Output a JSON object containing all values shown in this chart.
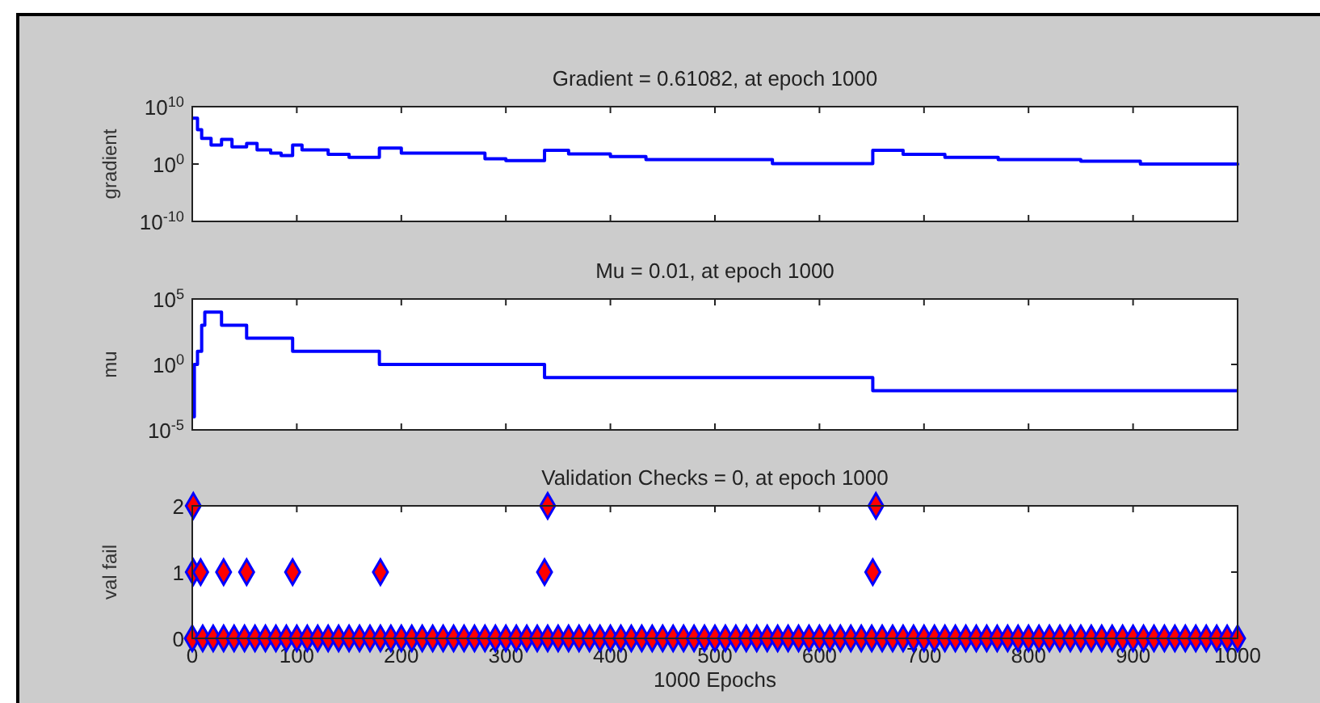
{
  "chart_data": [
    {
      "type": "step",
      "title": "Gradient = 0.61082, at epoch 1000",
      "ylabel": "gradient",
      "log": "y",
      "tick_labels": "y",
      "xlim": [
        0,
        1000
      ],
      "xticks": [
        {
          "value": 0,
          "label": null
        },
        {
          "value": 100,
          "label": null
        },
        {
          "value": 200,
          "label": null
        },
        {
          "value": 300,
          "label": null
        },
        {
          "value": 400,
          "label": null
        },
        {
          "value": 500,
          "label": null
        },
        {
          "value": 600,
          "label": null
        },
        {
          "value": 700,
          "label": null
        },
        {
          "value": 800,
          "label": null
        },
        {
          "value": 900,
          "label": null
        },
        {
          "value": 1000,
          "label": null
        }
      ],
      "ylim": [
        1e-10,
        10000000000.0
      ],
      "yticks": [
        {
          "value": 1e-10,
          "label": "10$^{-10}$"
        },
        {
          "value": 1,
          "label": "10$^{0}$"
        },
        {
          "value": 10000000000.0,
          "label": "10$^{10}$"
        }
      ],
      "series": [
        {
          "color": "#0000ff",
          "x": [
            0,
            5,
            9,
            18,
            28,
            38,
            52,
            62,
            75,
            85,
            96,
            105,
            130,
            150,
            179,
            200,
            280,
            300,
            337,
            360,
            400,
            434,
            555,
            651,
            680,
            720,
            771,
            850,
            907,
            1000
          ],
          "values": [
            100000000.0,
            1000000.0,
            30000.0,
            2000.0,
            20000.0,
            1000.0,
            4000.0,
            300,
            80,
            30,
            2000.0,
            300,
            50,
            15,
            600,
            80,
            8,
            4,
            250,
            60,
            20,
            6,
            1.2,
            250,
            50,
            15,
            6,
            3,
            1,
            0.61082
          ]
        }
      ]
    },
    {
      "type": "step",
      "title": "Mu = 0.01, at epoch 1000",
      "ylabel": "mu",
      "log": "y",
      "tick_labels": "y",
      "xlim": [
        0,
        1000
      ],
      "xticks": [
        {
          "value": 0,
          "label": null
        },
        {
          "value": 100,
          "label": null
        },
        {
          "value": 200,
          "label": null
        },
        {
          "value": 300,
          "label": null
        },
        {
          "value": 400,
          "label": null
        },
        {
          "value": 500,
          "label": null
        },
        {
          "value": 600,
          "label": null
        },
        {
          "value": 700,
          "label": null
        },
        {
          "value": 800,
          "label": null
        },
        {
          "value": 900,
          "label": null
        },
        {
          "value": 1000,
          "label": null
        }
      ],
      "ylim": [
        1e-05,
        100000.0
      ],
      "yticks": [
        {
          "value": 1e-05,
          "label": "10$^{-5}$"
        },
        {
          "value": 1,
          "label": "10$^{0}$"
        },
        {
          "value": 100000.0,
          "label": "10$^{5}$"
        }
      ],
      "series": [
        {
          "color": "#0000ff",
          "x": [
            0,
            2,
            5,
            9,
            12,
            28,
            52,
            96,
            179,
            337,
            651,
            1000
          ],
          "values": [
            0.0001,
            1,
            10,
            1000,
            10000.0,
            1000,
            100,
            10,
            1,
            0.1,
            0.01,
            0.01
          ]
        }
      ]
    },
    {
      "type": "scatter",
      "title": "Validation Checks = 0, at epoch 1000",
      "ylabel": "val fail",
      "xlabel": "1000 Epochs",
      "marker": "diamond",
      "xlim": [
        0,
        1000
      ],
      "xticks": [
        0,
        100,
        200,
        300,
        400,
        500,
        600,
        700,
        800,
        900,
        1000
      ],
      "ylim": [
        0,
        2
      ],
      "yticks": [
        0,
        1,
        2
      ],
      "series": [
        {
          "color": "#ff0000",
          "x": [
            1,
            1,
            8,
            30,
            52,
            96,
            180,
            337,
            340,
            651,
            654,
            0,
            10,
            20,
            30,
            40,
            50,
            60,
            70,
            80,
            90,
            100,
            110,
            120,
            130,
            140,
            150,
            160,
            170,
            180,
            190,
            200,
            210,
            220,
            230,
            240,
            250,
            260,
            270,
            280,
            290,
            300,
            310,
            320,
            330,
            340,
            350,
            360,
            370,
            380,
            390,
            400,
            410,
            420,
            430,
            440,
            450,
            460,
            470,
            480,
            490,
            500,
            510,
            520,
            530,
            540,
            550,
            560,
            570,
            580,
            590,
            600,
            610,
            620,
            630,
            640,
            650,
            660,
            670,
            680,
            690,
            700,
            710,
            720,
            730,
            740,
            750,
            760,
            770,
            780,
            790,
            800,
            810,
            820,
            830,
            840,
            850,
            860,
            870,
            880,
            890,
            900,
            910,
            920,
            930,
            940,
            950,
            960,
            970,
            980,
            990,
            1000
          ],
          "values": [
            2,
            1,
            1,
            1,
            1,
            1,
            1,
            1,
            2,
            1,
            2,
            0,
            0,
            0,
            0,
            0,
            0,
            0,
            0,
            0,
            0,
            0,
            0,
            0,
            0,
            0,
            0,
            0,
            0,
            0,
            0,
            0,
            0,
            0,
            0,
            0,
            0,
            0,
            0,
            0,
            0,
            0,
            0,
            0,
            0,
            0,
            0,
            0,
            0,
            0,
            0,
            0,
            0,
            0,
            0,
            0,
            0,
            0,
            0,
            0,
            0,
            0,
            0,
            0,
            0,
            0,
            0,
            0,
            0,
            0,
            0,
            0,
            0,
            0,
            0,
            0,
            0,
            0,
            0,
            0,
            0,
            0,
            0,
            0,
            0,
            0,
            0,
            0,
            0,
            0,
            0,
            0,
            0,
            0,
            0,
            0,
            0,
            0,
            0,
            0,
            0,
            0,
            0,
            0,
            0,
            0,
            0,
            0,
            0,
            0,
            0,
            0
          ]
        }
      ]
    }
  ]
}
